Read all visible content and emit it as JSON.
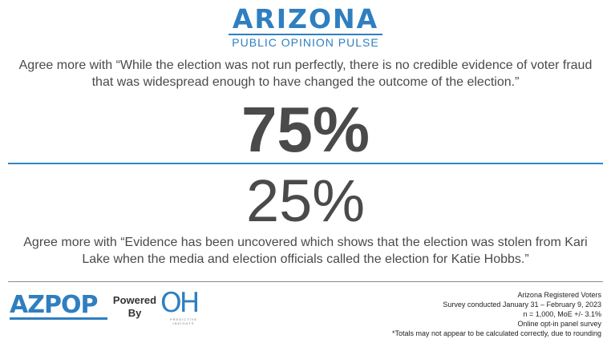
{
  "header": {
    "logo_title": "ARIZONA",
    "logo_subtitle": "PUBLIC OPINION PULSE"
  },
  "result_top": {
    "statement": "Agree more with “While the election was not run perfectly, there is no credible evidence of voter fraud that was widespread enough to have changed the outcome of the election.”",
    "percent": "75%"
  },
  "result_bottom": {
    "percent": "25%",
    "statement": "Agree more with “Evidence has been uncovered which shows that the election was stolen from Kari Lake when the media and election officials called the election for Katie Hobbs.”"
  },
  "footer": {
    "azpop_logo": "AZPOP",
    "powered_by": "Powered By",
    "oh_logo": "OH",
    "oh_logo_sub": "PREDICTIVE INSIGHTS",
    "notes": [
      "Arizona Registered Voters",
      "Survey conducted January 31 – February 9, 2023",
      "n = 1,000, MoE +/- 3.1%",
      "Online opt-in panel survey",
      "*Totals may not appear to be calculated correctly, due to rounding"
    ]
  },
  "colors": {
    "brand_blue": "#2f7fc0",
    "text_dark": "#4a4a4a",
    "divider_gray": "#8a8a8a"
  }
}
